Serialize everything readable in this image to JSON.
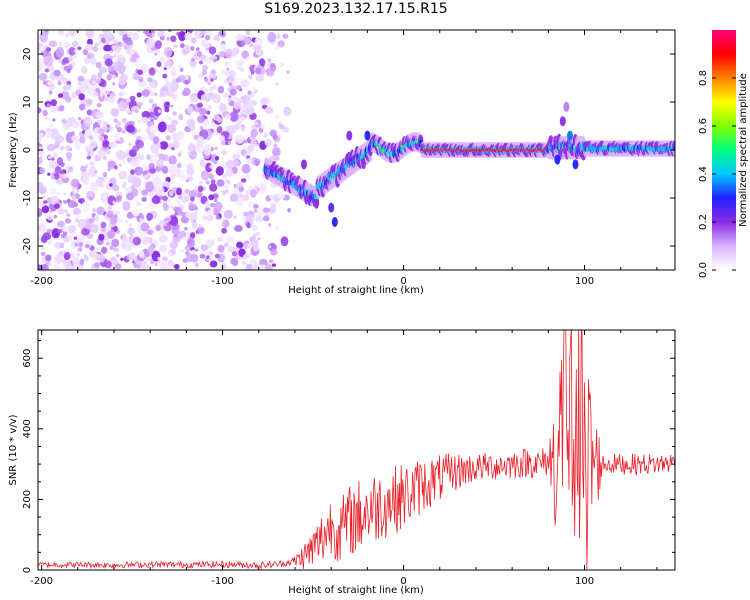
{
  "title": "S169.2023.132.17.15.R15",
  "chart_data": [
    {
      "type": "heatmap",
      "xlabel": "Height of straight line (km)",
      "ylabel": "Frequency (Hz)",
      "xlim": [
        -202,
        150
      ],
      "ylim": [
        -25,
        25
      ],
      "xticks": [
        "-200",
        "-100",
        "0",
        "100"
      ],
      "yticks": [
        "-20",
        "-10",
        "0",
        "10",
        "20"
      ],
      "colorbar": {
        "label": "Normalized spectral amplitude",
        "range": [
          0,
          1
        ],
        "ticks": [
          "0.0",
          "0.2",
          "0.4",
          "0.6",
          "0.8"
        ],
        "colors": [
          "#ffffff",
          "#d9b3ff",
          "#8a2be2",
          "#2020ff",
          "#00c8ff",
          "#00ff80",
          "#80ff00",
          "#ffff00",
          "#ff8000",
          "#ff0000",
          "#ff007f"
        ]
      },
      "regions": [
        {
          "x": [
            -202,
            -62
          ],
          "freq": [
            -25,
            25
          ],
          "amplitude": [
            0.0,
            0.15
          ],
          "note_color": "#8a2be2"
        },
        {
          "x": [
            -75,
            -48
          ],
          "freq_trend": [
            -4,
            -10
          ],
          "amplitude": [
            0.2,
            0.45
          ]
        },
        {
          "x": [
            -48,
            -18
          ],
          "freq_trend": [
            -8,
            0
          ],
          "amplitude": [
            0.2,
            0.5
          ]
        },
        {
          "x": [
            -18,
            10
          ],
          "freq": [
            -1,
            2
          ],
          "amplitude": [
            0.3,
            0.6
          ]
        },
        {
          "x": [
            10,
            80
          ],
          "freq": [
            0,
            0
          ],
          "amplitude": [
            0.8,
            1.0
          ]
        },
        {
          "x": [
            80,
            100
          ],
          "freq": [
            -3,
            8
          ],
          "amplitude": [
            0.2,
            0.5
          ]
        },
        {
          "x": [
            100,
            150
          ],
          "freq": [
            0,
            1
          ],
          "amplitude": [
            0.3,
            0.5
          ]
        }
      ]
    },
    {
      "type": "line",
      "xlabel": "Height of straight line (km)",
      "ylabel": "SNR (10 * v/v)",
      "xlim": [
        -202,
        150
      ],
      "ylim": [
        0,
        680
      ],
      "xticks": [
        "-200",
        "-100",
        "0",
        "100"
      ],
      "yticks": [
        "0",
        "200",
        "400",
        "600"
      ],
      "series": [
        {
          "color": "#e8202a",
          "x": [
            -202,
            -180,
            -160,
            -140,
            -120,
            -100,
            -80,
            -70,
            -60,
            -55,
            -50,
            -45,
            -40,
            -35,
            -30,
            -25,
            -20,
            -15,
            -10,
            -5,
            0,
            5,
            10,
            15,
            20,
            25,
            30,
            40,
            50,
            60,
            70,
            75,
            80,
            85,
            88,
            90,
            92,
            95,
            98,
            100,
            103,
            106,
            110,
            115,
            120,
            130,
            140,
            150
          ],
          "y": [
            15,
            15,
            14,
            16,
            15,
            16,
            14,
            16,
            25,
            40,
            60,
            90,
            130,
            110,
            140,
            150,
            170,
            180,
            190,
            200,
            210,
            220,
            240,
            250,
            260,
            270,
            280,
            290,
            295,
            300,
            305,
            300,
            310,
            320,
            420,
            560,
            380,
            450,
            400,
            350,
            320,
            300,
            300,
            300,
            300,
            300,
            300,
            305
          ],
          "noise_amplitude_profile": {
            "x": [
              -202,
              -62,
              -45,
              -25,
              0,
              40,
              80,
              86,
              102,
              110,
              150
            ],
            "amp": [
              8,
              10,
              80,
              110,
              95,
              40,
              45,
              300,
              300,
              30,
              30
            ]
          }
        }
      ]
    }
  ]
}
